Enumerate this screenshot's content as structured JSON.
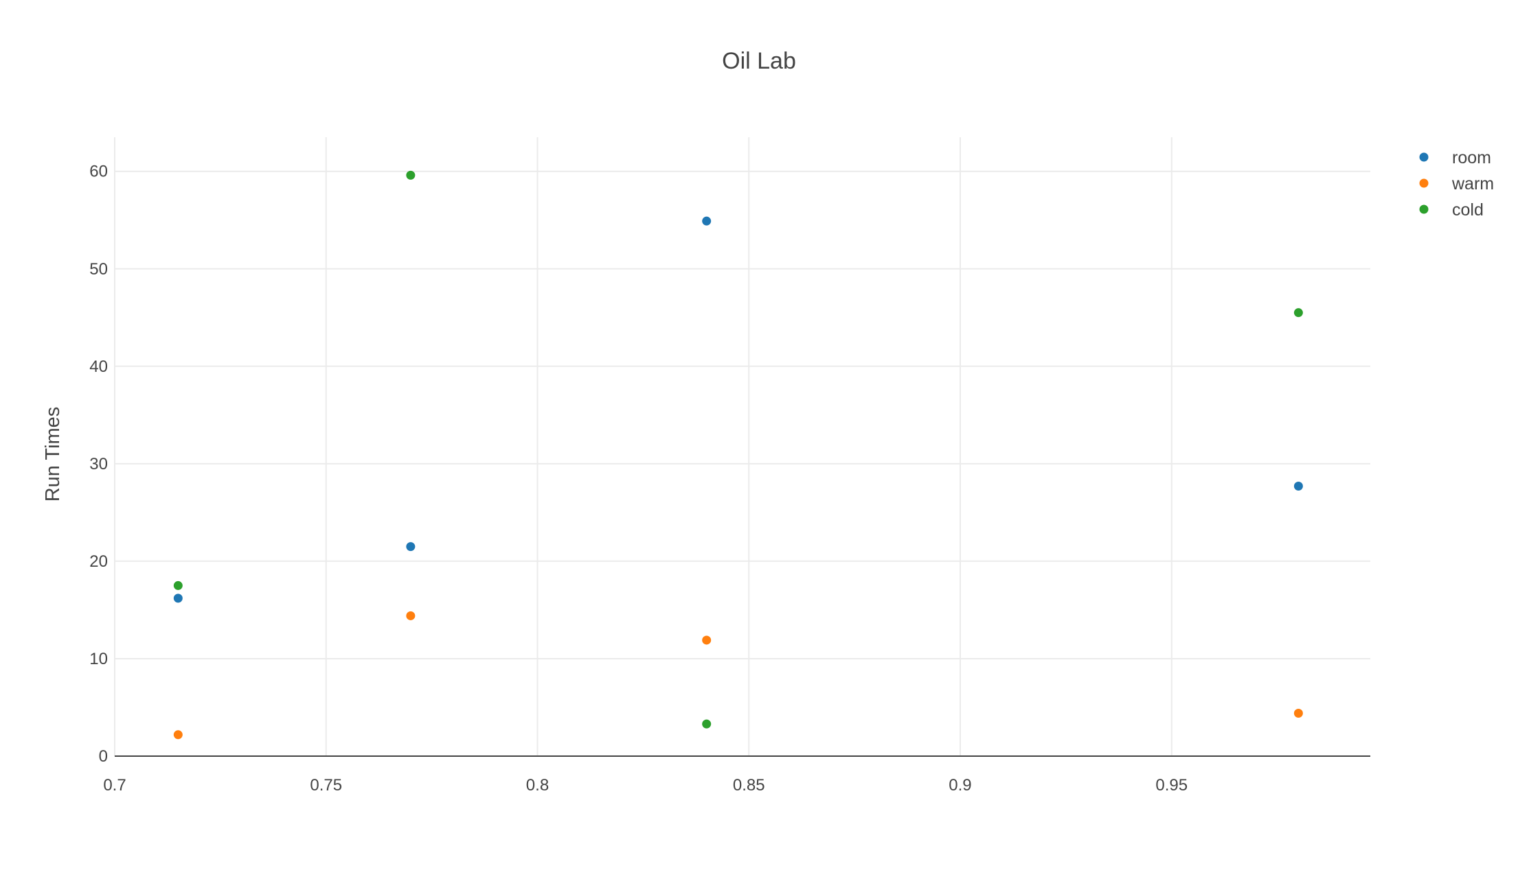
{
  "chart_data": {
    "type": "scatter",
    "title": "Oil Lab",
    "xlabel": "",
    "ylabel": "Run Times",
    "xlim": [
      0.7,
      0.997
    ],
    "ylim": [
      0,
      63.5
    ],
    "x_ticks": [
      0.7,
      0.75,
      0.8,
      0.85,
      0.9,
      0.95
    ],
    "x_tick_labels": [
      "0.7",
      "0.75",
      "0.8",
      "0.85",
      "0.9",
      "0.95"
    ],
    "y_ticks": [
      0,
      10,
      20,
      30,
      40,
      50,
      60
    ],
    "y_tick_labels": [
      "0",
      "10",
      "20",
      "30",
      "40",
      "50",
      "60"
    ],
    "grid": true,
    "legend_position": "top-right",
    "series": [
      {
        "name": "room",
        "color": "#1f77b4",
        "x": [
          0.715,
          0.77,
          0.84,
          0.98
        ],
        "y": [
          16.2,
          21.5,
          54.9,
          27.7
        ]
      },
      {
        "name": "warm",
        "color": "#ff7f0e",
        "x": [
          0.715,
          0.77,
          0.84,
          0.98
        ],
        "y": [
          2.2,
          14.4,
          11.9,
          4.4
        ]
      },
      {
        "name": "cold",
        "color": "#2ca02c",
        "x": [
          0.715,
          0.77,
          0.84,
          0.98
        ],
        "y": [
          17.5,
          59.6,
          3.3,
          45.5
        ]
      }
    ]
  }
}
